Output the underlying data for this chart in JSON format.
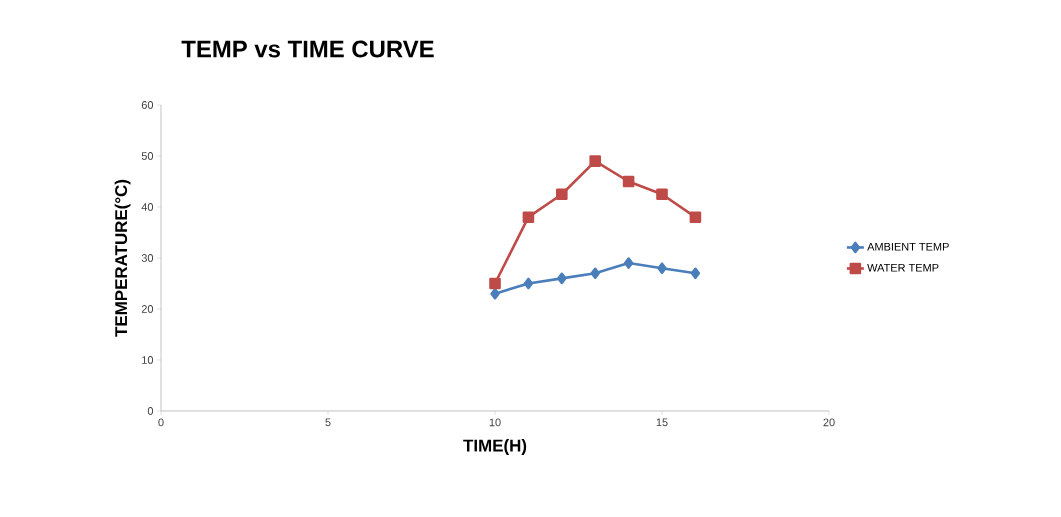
{
  "chart_data": {
    "type": "line",
    "title": "TEMP vs TIME CURVE",
    "xlabel": "TIME(H)",
    "ylabel": "TEMPERATURE(°C)",
    "xlim": [
      0,
      20
    ],
    "xticks": [
      0,
      5,
      10,
      15,
      20
    ],
    "ylim": [
      0,
      60
    ],
    "yticks": [
      0,
      10,
      20,
      30,
      40,
      50,
      60
    ],
    "grid": false,
    "legend": "right",
    "line_style": "solid",
    "series": [
      {
        "name": "AMBIENT TEMP",
        "color": "#4a7ebb",
        "marker": "diamond",
        "x": [
          10,
          11,
          12,
          13,
          14,
          15,
          16
        ],
        "values": [
          23,
          25,
          26,
          27,
          29,
          28,
          27
        ]
      },
      {
        "name": "WATER TEMP",
        "color": "#be4b48",
        "marker": "square",
        "x": [
          10,
          11,
          12,
          13,
          14,
          15,
          16
        ],
        "values": [
          25,
          38,
          42.5,
          49,
          45,
          42.5,
          38
        ]
      }
    ]
  }
}
